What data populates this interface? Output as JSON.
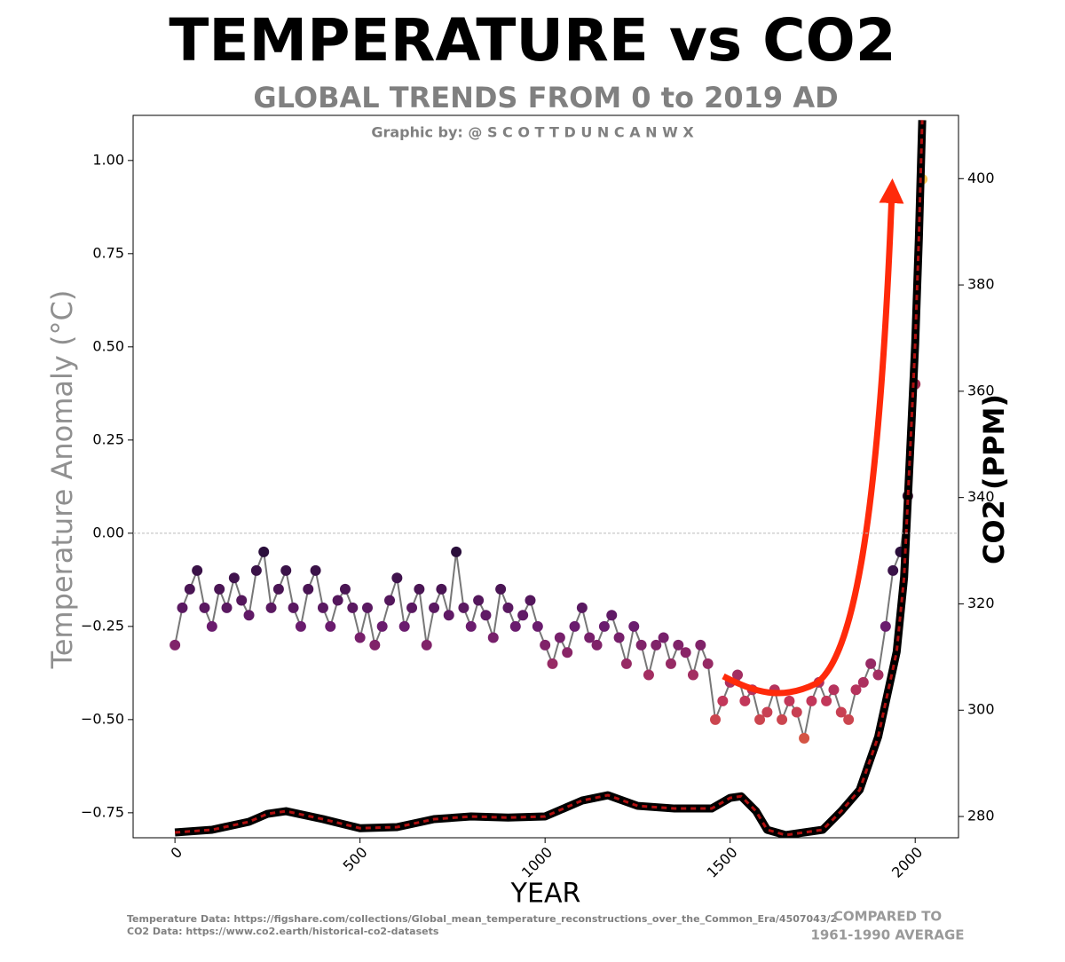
{
  "chart_data": {
    "type": "scatter-line",
    "title": "TEMPERATURE vs CO2",
    "subtitle": "GLOBAL TRENDS FROM 0 to 2019 AD",
    "credit": "Graphic by: @ S C O T T D U N C A N W X",
    "x_label": "YEAR",
    "y_label": "Temperature Anomaly (°C)",
    "y2_label": "CO2 (PPM)",
    "sources": [
      "Temperature Data: https://figshare.com/collections/Global_mean_temperature_reconstructions_over_the_Common_Era/4507043/2",
      "CO2 Data: https://www.co2.earth/historical-co2-datasets"
    ],
    "comparison_note": [
      "COMPARED TO",
      "1961-1990 AVERAGE"
    ],
    "xlim": [
      -113,
      2117
    ],
    "xticks": [
      0,
      500,
      1000,
      1500,
      2000
    ],
    "ylim": [
      -0.817,
      1.121
    ],
    "yticks": [
      {
        "value": -0.75,
        "label": "−0.75"
      },
      {
        "value": -0.5,
        "label": "−0.50"
      },
      {
        "value": -0.25,
        "label": "−0.25"
      },
      {
        "value": 0,
        "label": "0.00"
      },
      {
        "value": 0.25,
        "label": "0.25"
      },
      {
        "value": 0.5,
        "label": "0.50"
      },
      {
        "value": 0.75,
        "label": "0.75"
      },
      {
        "value": 1,
        "label": "1.00"
      }
    ],
    "y2lim": [
      276,
      411.9
    ],
    "y2ticks": [
      280,
      300,
      320,
      340,
      360,
      380,
      400
    ],
    "zero_line": true,
    "series": [
      {
        "name": "Temperature Anomaly",
        "color": "#777777",
        "colormap": [
          {
            "value": -0.7,
            "color": "#f07f22"
          },
          {
            "value": -0.45,
            "color": "#c2375a"
          },
          {
            "value": -0.25,
            "color": "#6a1c6e"
          },
          {
            "value": 0,
            "color": "#1a0b2e"
          },
          {
            "value": 0.5,
            "color": "#c2375a"
          },
          {
            "value": 1,
            "color": "#fcd34d"
          }
        ],
        "x": [
          0,
          20,
          40,
          60,
          80,
          100,
          120,
          140,
          160,
          180,
          200,
          220,
          240,
          260,
          280,
          300,
          320,
          340,
          360,
          380,
          400,
          420,
          440,
          460,
          480,
          500,
          520,
          540,
          560,
          580,
          600,
          620,
          640,
          660,
          680,
          700,
          720,
          740,
          760,
          780,
          800,
          820,
          840,
          860,
          880,
          900,
          920,
          940,
          960,
          980,
          1000,
          1020,
          1040,
          1060,
          1080,
          1100,
          1120,
          1140,
          1160,
          1180,
          1200,
          1220,
          1240,
          1260,
          1280,
          1300,
          1320,
          1340,
          1360,
          1380,
          1400,
          1420,
          1440,
          1460,
          1480,
          1500,
          1520,
          1540,
          1560,
          1580,
          1600,
          1620,
          1640,
          1660,
          1680,
          1700,
          1720,
          1740,
          1760,
          1780,
          1800,
          1820,
          1840,
          1860,
          1880,
          1900,
          1920,
          1940,
          1960,
          1980,
          2000,
          2019
        ],
        "values": [
          -0.3,
          -0.2,
          -0.15,
          -0.1,
          -0.2,
          -0.25,
          -0.15,
          -0.2,
          -0.12,
          -0.18,
          -0.22,
          -0.1,
          -0.05,
          -0.2,
          -0.15,
          -0.1,
          -0.2,
          -0.25,
          -0.15,
          -0.1,
          -0.2,
          -0.25,
          -0.18,
          -0.15,
          -0.2,
          -0.28,
          -0.2,
          -0.3,
          -0.25,
          -0.18,
          -0.12,
          -0.25,
          -0.2,
          -0.15,
          -0.3,
          -0.2,
          -0.15,
          -0.22,
          -0.05,
          -0.2,
          -0.25,
          -0.18,
          -0.22,
          -0.28,
          -0.15,
          -0.2,
          -0.25,
          -0.22,
          -0.18,
          -0.25,
          -0.3,
          -0.35,
          -0.28,
          -0.32,
          -0.25,
          -0.2,
          -0.28,
          -0.3,
          -0.25,
          -0.22,
          -0.28,
          -0.35,
          -0.25,
          -0.3,
          -0.38,
          -0.3,
          -0.28,
          -0.35,
          -0.3,
          -0.32,
          -0.38,
          -0.3,
          -0.35,
          -0.5,
          -0.45,
          -0.4,
          -0.38,
          -0.45,
          -0.42,
          -0.5,
          -0.48,
          -0.42,
          -0.5,
          -0.45,
          -0.48,
          -0.55,
          -0.45,
          -0.4,
          -0.45,
          -0.42,
          -0.48,
          -0.5,
          -0.42,
          -0.4,
          -0.35,
          -0.38,
          -0.25,
          -0.1,
          -0.05,
          0.1,
          0.4,
          0.95
        ]
      },
      {
        "name": "CO2",
        "axis": "y2",
        "color": "#000000",
        "dash_color": "#b01010",
        "x": [
          0,
          100,
          200,
          250,
          300,
          400,
          500,
          600,
          700,
          800,
          900,
          1000,
          1100,
          1170,
          1250,
          1350,
          1450,
          1500,
          1530,
          1570,
          1600,
          1650,
          1700,
          1750,
          1800,
          1850,
          1900,
          1950,
          1970,
          1990,
          2000,
          2010,
          2019
        ],
        "values": [
          277,
          277.5,
          279,
          280.5,
          281,
          279.5,
          277.8,
          278,
          279.5,
          280,
          279.8,
          280,
          283,
          284,
          282,
          281.5,
          281.5,
          283.5,
          283.8,
          281,
          277.5,
          276.5,
          277,
          277.5,
          281,
          285,
          295,
          311,
          325,
          354,
          369,
          389,
          411
        ]
      }
    ]
  }
}
